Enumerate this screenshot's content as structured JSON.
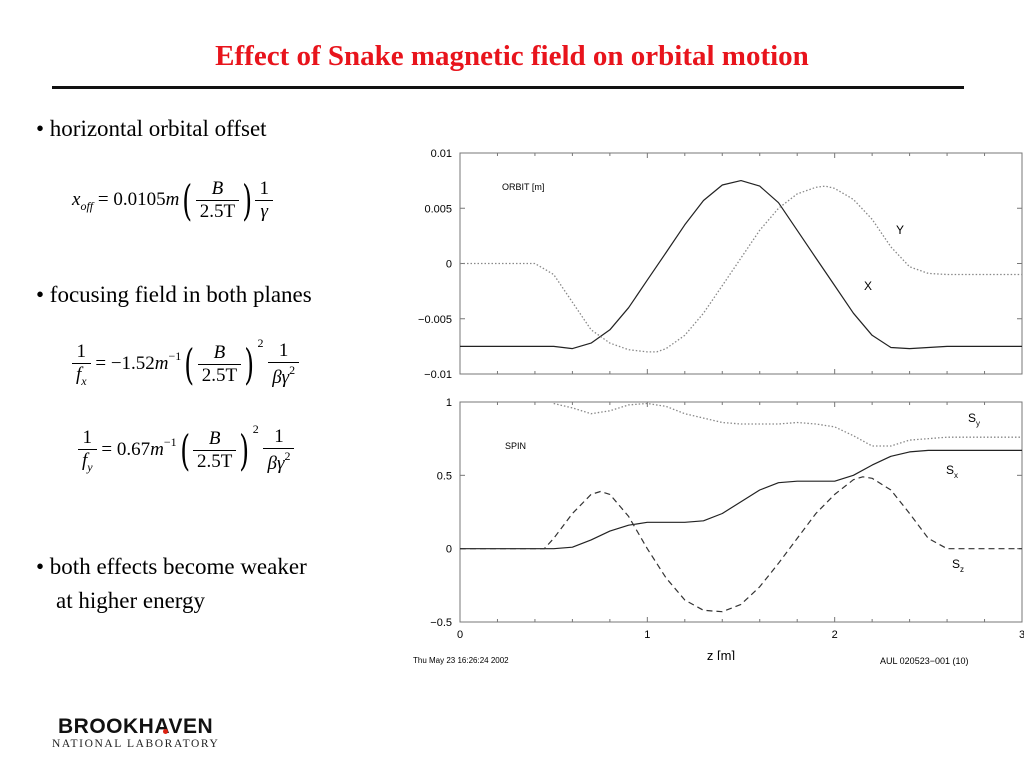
{
  "slide": {
    "title": "Effect of Snake magnetic field on orbital motion",
    "bullets": {
      "b1": "• horizontal orbital offset",
      "b2": "• focusing field in both planes",
      "b3_line1": "• both effects become weaker",
      "b3_line2": "at higher energy"
    },
    "formulas": {
      "x_off": {
        "lhs_var": "x",
        "lhs_sub": "off",
        "eq": "= 0.0105",
        "unit": "m",
        "frac_num": "B",
        "frac_den": "2.5T",
        "tail_num": "1",
        "tail_den": "γ"
      },
      "fx": {
        "lhs_num": "1",
        "lhs_den": "f",
        "lhs_sub": "x",
        "eq": "= −1.52",
        "unit": "m",
        "unit_exp": "−1",
        "frac_num": "B",
        "frac_den": "2.5T",
        "power": "2",
        "tail_num": "1",
        "tail_den": "βγ",
        "tail_exp": "2"
      },
      "fy": {
        "lhs_num": "1",
        "lhs_den": "f",
        "lhs_sub": "y",
        "eq": "= 0.67",
        "unit": "m",
        "unit_exp": "−1",
        "frac_num": "B",
        "frac_den": "2.5T",
        "power": "2",
        "tail_num": "1",
        "tail_den": "βγ",
        "tail_exp": "2"
      }
    },
    "footer_left": "Thu May 23 16:26:24 2002",
    "footer_right": "AUL 020523−001 (10)",
    "logo": {
      "main": "BROOKHAVEN",
      "sub": "NATIONAL LABORATORY"
    }
  },
  "chart_data": [
    {
      "type": "line",
      "label": "ORBIT [m]",
      "xlim": [
        0,
        3
      ],
      "ylim": [
        -0.01,
        0.01
      ],
      "yticks": [
        "0.01",
        "0.005",
        "0",
        "−0.005",
        "−0.01"
      ],
      "ytick_values": [
        0.01,
        0.005,
        0,
        -0.005,
        -0.01
      ],
      "series": [
        {
          "name": "X",
          "style": "solid",
          "x": [
            0,
            0.5,
            0.6,
            0.7,
            0.8,
            0.9,
            1.0,
            1.1,
            1.2,
            1.3,
            1.4,
            1.5,
            1.6,
            1.7,
            1.8,
            1.9,
            2.0,
            2.1,
            2.2,
            2.3,
            2.4,
            2.5,
            2.6,
            3.0
          ],
          "y": [
            -0.0075,
            -0.0075,
            -0.0077,
            -0.0072,
            -0.006,
            -0.004,
            -0.0015,
            0.001,
            0.0035,
            0.0057,
            0.0071,
            0.0075,
            0.007,
            0.0055,
            0.003,
            0.0005,
            -0.002,
            -0.0045,
            -0.0065,
            -0.0076,
            -0.0077,
            -0.0076,
            -0.0075,
            -0.0075
          ]
        },
        {
          "name": "Y",
          "style": "dotted",
          "x": [
            0,
            0.4,
            0.5,
            0.6,
            0.7,
            0.8,
            0.9,
            1.0,
            1.05,
            1.1,
            1.2,
            1.3,
            1.4,
            1.5,
            1.6,
            1.7,
            1.8,
            1.9,
            1.95,
            2.0,
            2.1,
            2.2,
            2.3,
            2.4,
            2.5,
            2.6,
            3.0
          ],
          "y": [
            0,
            0,
            -0.001,
            -0.0035,
            -0.006,
            -0.0072,
            -0.0078,
            -0.008,
            -0.008,
            -0.0077,
            -0.0065,
            -0.0045,
            -0.002,
            0.0005,
            0.003,
            0.005,
            0.0063,
            0.0069,
            0.007,
            0.0068,
            0.0058,
            0.004,
            0.0015,
            -0.0003,
            -0.0009,
            -0.001,
            -0.001
          ]
        }
      ]
    },
    {
      "type": "line",
      "label": "SPIN",
      "xlabel": "z [m]",
      "xlim": [
        0,
        3
      ],
      "ylim": [
        -0.5,
        1
      ],
      "xticks": [
        "0",
        "1",
        "2",
        "3"
      ],
      "xtick_values": [
        0,
        1,
        2,
        3
      ],
      "yticks": [
        "1",
        "0.5",
        "0",
        "−0.5"
      ],
      "ytick_values": [
        1,
        0.5,
        0,
        -0.5
      ],
      "series": [
        {
          "name": "Sy",
          "style": "dotted",
          "x": [
            0.5,
            0.6,
            0.7,
            0.8,
            0.9,
            1.0,
            1.1,
            1.2,
            1.3,
            1.4,
            1.5,
            1.6,
            1.7,
            1.8,
            1.9,
            2.0,
            2.1,
            2.2,
            2.3,
            2.4,
            2.6,
            3.0
          ],
          "y": [
            0.99,
            0.96,
            0.92,
            0.94,
            0.98,
            0.99,
            0.97,
            0.92,
            0.89,
            0.86,
            0.85,
            0.85,
            0.85,
            0.86,
            0.85,
            0.83,
            0.77,
            0.7,
            0.7,
            0.74,
            0.76,
            0.76
          ]
        },
        {
          "name": "Sx",
          "style": "solid",
          "x": [
            0,
            0.5,
            0.6,
            0.7,
            0.8,
            0.9,
            1.0,
            1.2,
            1.3,
            1.4,
            1.5,
            1.6,
            1.7,
            1.8,
            1.9,
            2.0,
            2.1,
            2.2,
            2.3,
            2.4,
            2.5,
            3.0
          ],
          "y": [
            0,
            0,
            0.01,
            0.06,
            0.12,
            0.16,
            0.18,
            0.18,
            0.19,
            0.24,
            0.32,
            0.4,
            0.45,
            0.46,
            0.46,
            0.46,
            0.5,
            0.57,
            0.63,
            0.66,
            0.67,
            0.67
          ]
        },
        {
          "name": "Sz",
          "style": "dashed",
          "x": [
            0,
            0.45,
            0.5,
            0.6,
            0.7,
            0.75,
            0.8,
            0.9,
            1.0,
            1.1,
            1.2,
            1.3,
            1.4,
            1.5,
            1.6,
            1.7,
            1.8,
            1.9,
            2.0,
            2.1,
            2.15,
            2.2,
            2.3,
            2.4,
            2.5,
            2.6,
            3.0
          ],
          "y": [
            0,
            0,
            0.07,
            0.24,
            0.37,
            0.39,
            0.37,
            0.22,
            0.0,
            -0.2,
            -0.35,
            -0.42,
            -0.43,
            -0.38,
            -0.26,
            -0.1,
            0.07,
            0.24,
            0.37,
            0.47,
            0.49,
            0.48,
            0.4,
            0.24,
            0.07,
            0.0,
            0.0
          ]
        }
      ]
    }
  ]
}
